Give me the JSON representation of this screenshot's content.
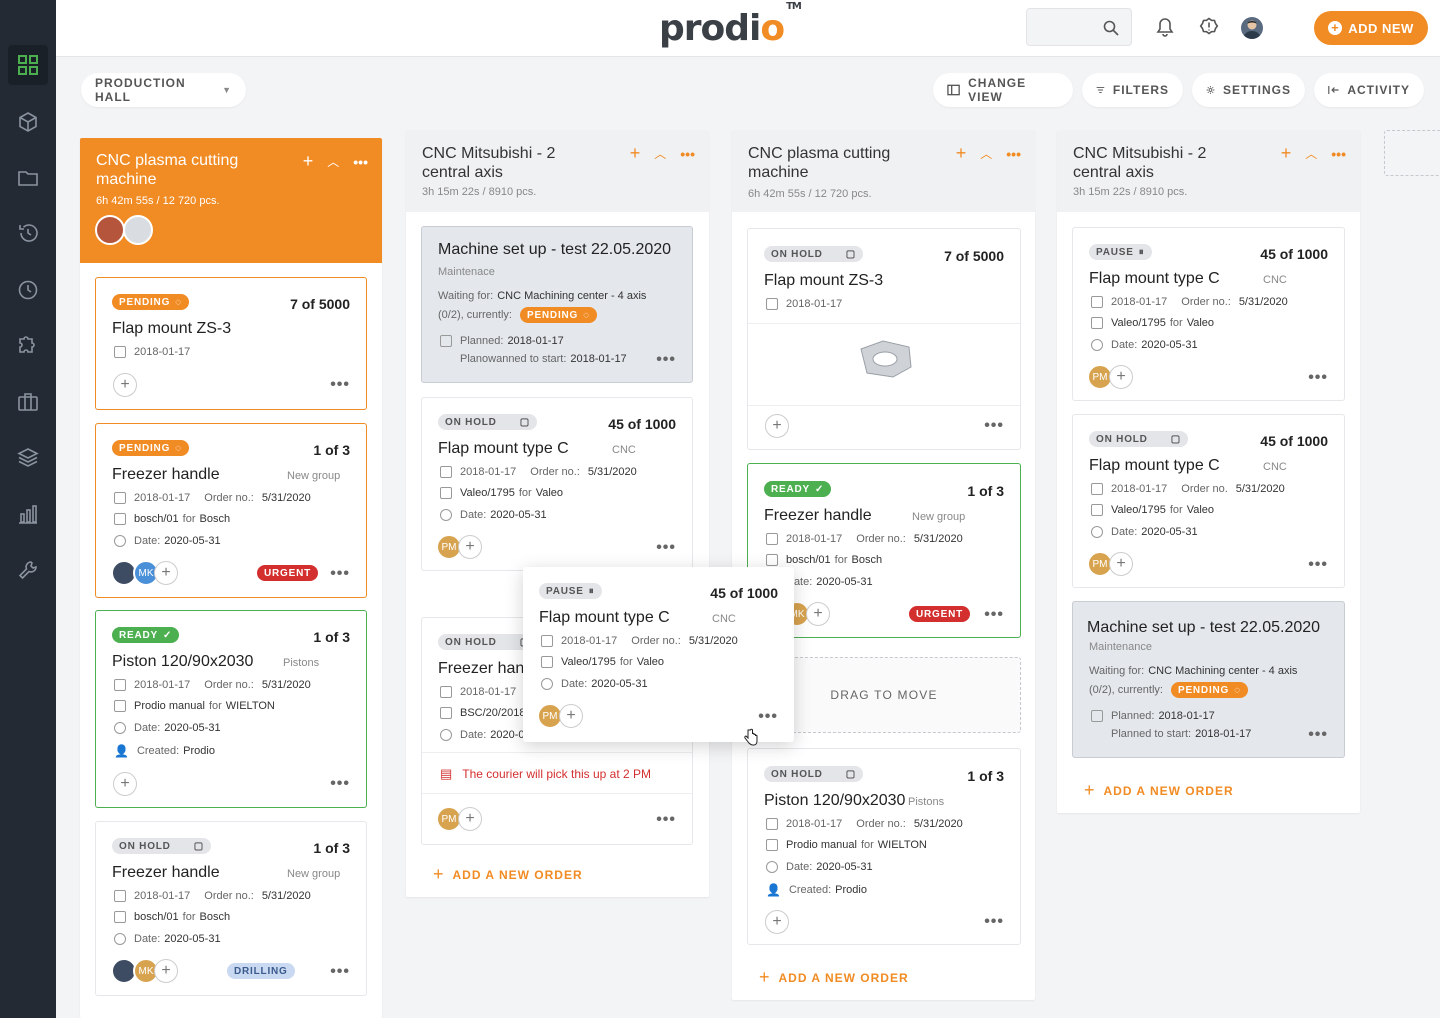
{
  "brand": {
    "logo_text": "prodio",
    "logo_o": "o",
    "trademark": "TM"
  },
  "sidebar": {
    "items": [
      "dashboard-icon",
      "box-icon",
      "folder-icon",
      "history-icon",
      "clock-icon",
      "puzzle-icon",
      "briefcase-icon",
      "layers-icon",
      "bar-chart-icon",
      "wrench-icon"
    ],
    "active": "dashboard-icon"
  },
  "topbar": {
    "search_placeholder": "",
    "add_new": "ADD NEW"
  },
  "toolbar": {
    "hall": "PRODUCTION HALL",
    "change_view": "CHANGE VIEW",
    "filters": "FILTERS",
    "settings": "SETTINGS",
    "activity": "ACTIVITY"
  },
  "colors": {
    "accent": "#f18b23",
    "ready": "#4caf50",
    "urgent": "#d32f2f",
    "sidebar": "#232a33"
  },
  "columns": [
    {
      "title": "CNC plasma cutting machine",
      "sub": "6h 42m 55s / 12 720 pcs.",
      "cards": [
        {
          "status": "PENDING",
          "qty": "7 of 5000",
          "title": "Flap mount ZS-3",
          "date": "2018-01-17"
        },
        {
          "status": "PENDING",
          "qty": "1 of 3",
          "title": "Freezer handle",
          "group": "New group",
          "date": "2018-01-17",
          "order_label": "Order no.:",
          "order": "5/31/2020",
          "client_code": "bosch/01",
          "for": "for",
          "client": "Bosch",
          "date_label": "Date:",
          "due": "2020-05-31",
          "avatar2": "MK",
          "tag": "URGENT"
        },
        {
          "status": "READY",
          "qty": "1 of 3",
          "title": "Piston 120/90x2030",
          "group": "Pistons",
          "date": "2018-01-17",
          "order_label": "Order no.:",
          "order": "5/31/2020",
          "client_code": "Prodio manual",
          "for": "for",
          "client": "WIELTON",
          "date_label": "Date:",
          "due": "2020-05-31",
          "created_label": "Created:",
          "created": "Prodio"
        },
        {
          "status": "ON HOLD",
          "qty": "1 of 3",
          "title": "Freezer handle",
          "group": "New group",
          "date": "2018-01-17",
          "order_label": "Order no.:",
          "order": "5/31/2020",
          "client_code": "bosch/01",
          "for": "for",
          "client": "Bosch",
          "date_label": "Date:",
          "due": "2020-05-31",
          "avatar2": "MK",
          "tag": "DRILLING"
        }
      ],
      "add": "ADD A NEW ORDER"
    },
    {
      "title": "CNC Mitsubishi - 2 central axis",
      "sub": "3h 15m 22s / 8910 pcs.",
      "cards": [
        {
          "title": "Machine set up - test 22.05.2020",
          "group": "Maintenace",
          "waiting_label": "Waiting for:",
          "waiting": "CNC Machining center - 4 axis",
          "waiting2": "(0/2), currently:",
          "status": "PENDING",
          "planned_label": "Planned:",
          "planned": "2018-01-17",
          "start_label": "Planowanned to start:",
          "start": "2018-01-17"
        },
        {
          "status": "ON HOLD",
          "qty": "45 of 1000",
          "title": "Flap mount type C",
          "group": "CNC",
          "date": "2018-01-17",
          "order_label": "Order no.:",
          "order": "5/31/2020",
          "client_code": "Valeo/1795",
          "for": "for",
          "client": "Valeo",
          "date_label": "Date:",
          "due": "2020-05-31",
          "avatar": "PM"
        },
        {
          "status": "ON HOLD",
          "title": "Freezer han",
          "date": "2018-01-17",
          "client_code": "BSC/20/2018",
          "date_label": "Date:",
          "due": "2020-0",
          "note": "The courier will pick this up at 2 PM",
          "avatar": "PM"
        }
      ],
      "add": "ADD A NEW ORDER"
    },
    {
      "title": "CNC plasma cutting machine",
      "sub": "6h 42m 55s / 12 720 pcs.",
      "cards": [
        {
          "status": "ON HOLD",
          "qty": "7 of 5000",
          "title": "Flap mount ZS-3",
          "date": "2018-01-17"
        },
        {
          "status": "READY",
          "qty": "1 of 3",
          "title": "Freezer handle",
          "group": "New group",
          "date": "2018-01-17",
          "order_label": "Order no.:",
          "order": "5/31/2020",
          "client_code": "bosch/01",
          "for": "for",
          "client": "Bosch",
          "date_label": "Date:",
          "due": "2020-05-31",
          "avatar": "MK",
          "tag": "URGENT"
        },
        {
          "status": "ON HOLD",
          "qty": "1 of 3",
          "title": "Piston 120/90x2030",
          "group": "Pistons",
          "date": "2018-01-17",
          "order_label": "Order no.:",
          "order": "5/31/2020",
          "client_code": "Prodio manual",
          "for": "for",
          "client": "WIELTON",
          "date_label": "Date:",
          "due": "2020-05-31",
          "created_label": "Created:",
          "created": "Prodio"
        }
      ],
      "drop": "DRAG TO MOVE",
      "add": "ADD A NEW ORDER"
    },
    {
      "title": "CNC Mitsubishi - 2 central axis",
      "sub": "3h 15m 22s / 8910 pcs.",
      "cards": [
        {
          "status": "PAUSE",
          "qty": "45 of 1000",
          "title": "Flap mount type C",
          "group": "CNC",
          "date": "2018-01-17",
          "order_label": "Order no.:",
          "order": "5/31/2020",
          "client_code": "Valeo/1795",
          "for": "for",
          "client": "Valeo",
          "date_label": "Date:",
          "due": "2020-05-31",
          "avatar": "PM"
        },
        {
          "status": "ON HOLD",
          "qty": "45 of 1000",
          "title": "Flap mount type C",
          "group": "CNC",
          "date": "2018-01-17",
          "order_label": "Order no.",
          "order": "5/31/2020",
          "client_code": "Valeo/1795",
          "for": "for",
          "client": "Valeo",
          "date_label": "Date:",
          "due": "2020-05-31",
          "avatar": "PM"
        },
        {
          "title": "Machine set up - test 22.05.2020",
          "group": "Maintenance",
          "waiting_label": "Waiting for:",
          "waiting": "CNC Machining center - 4 axis",
          "waiting2": "(0/2), currently:",
          "status": "PENDING",
          "planned_label": "Planned:",
          "planned": "2018-01-17",
          "start_label": "Planned to start:",
          "start": "2018-01-17"
        }
      ],
      "add": "ADD A NEW ORDER"
    }
  ],
  "dragging": {
    "status": "PAUSE",
    "qty": "45 of 1000",
    "title": "Flap mount type C",
    "group": "CNC",
    "date": "2018-01-17",
    "order_label": "Order no.:",
    "order": "5/31/2020",
    "client_code": "Valeo/1795",
    "for": "for",
    "client": "Valeo",
    "date_label": "Date:",
    "due": "2020-05-31",
    "avatar": "PM"
  }
}
